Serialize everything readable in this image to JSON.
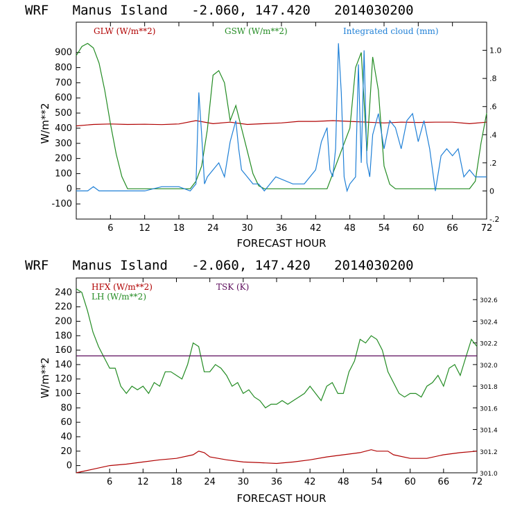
{
  "chart_data": [
    {
      "type": "line",
      "title": "WRF   Manus Island   -2.060, 147.420   2014030200",
      "xlabel": "FORECAST HOUR",
      "ylabel": "W/m**2",
      "xlim": [
        0,
        72
      ],
      "ylim": [
        -200,
        1100
      ],
      "x_ticks": [
        6,
        12,
        18,
        24,
        30,
        36,
        42,
        48,
        54,
        60,
        66,
        72
      ],
      "y_ticks": [
        -100,
        0,
        100,
        200,
        300,
        400,
        500,
        600,
        700,
        800,
        900
      ],
      "y2_range": [
        -0.2,
        1.2
      ],
      "y2_ticks": [
        "-.2",
        "0",
        ".2",
        ".4",
        ".6",
        ".8",
        "1.0"
      ],
      "y2_tick_values": [
        -0.2,
        0,
        0.2,
        0.4,
        0.6,
        0.8,
        1.0
      ],
      "legend": [
        "GLW (W/m**2)",
        "GSW (W/m**2)",
        "Integrated cloud (mm)"
      ],
      "series": [
        {
          "name": "GLW (W/m**2)",
          "color": "#b00000",
          "axis": "left",
          "x": [
            0,
            3,
            6,
            9,
            12,
            15,
            18,
            21,
            24,
            27,
            30,
            33,
            36,
            39,
            42,
            45,
            48,
            51,
            54,
            57,
            60,
            63,
            66,
            69,
            72
          ],
          "y": [
            415,
            425,
            428,
            425,
            426,
            424,
            428,
            450,
            430,
            440,
            425,
            430,
            435,
            445,
            445,
            450,
            445,
            440,
            435,
            440,
            438,
            440,
            440,
            430,
            440
          ]
        },
        {
          "name": "GSW (W/m**2)",
          "color": "#228b22",
          "axis": "left",
          "x": [
            0,
            1,
            2,
            3,
            4,
            5,
            6,
            7,
            8,
            9,
            10,
            20,
            21,
            22,
            23,
            24,
            25,
            26,
            27,
            28,
            29,
            30,
            31,
            32,
            33,
            34,
            35,
            44,
            45,
            46,
            47,
            48,
            49,
            50,
            51,
            52,
            53,
            54,
            55,
            56,
            69,
            70,
            71,
            72
          ],
          "y": [
            880,
            940,
            960,
            930,
            830,
            650,
            430,
            230,
            80,
            0,
            0,
            0,
            50,
            150,
            390,
            750,
            780,
            700,
            450,
            550,
            400,
            250,
            100,
            20,
            0,
            0,
            0,
            0,
            100,
            200,
            300,
            400,
            800,
            900,
            250,
            870,
            650,
            150,
            30,
            0,
            0,
            50,
            300,
            500
          ]
        },
        {
          "name": "Integrated cloud (mm)",
          "color": "#1e7fd6",
          "axis": "right",
          "x": [
            0,
            2,
            3,
            4,
            8,
            12,
            15,
            18,
            20,
            21,
            21.5,
            22,
            22.5,
            23,
            24,
            25,
            26,
            27,
            28,
            28.5,
            29,
            30,
            31,
            32,
            33,
            35,
            38,
            40,
            42,
            43,
            44,
            44.5,
            45,
            45.5,
            46,
            46.5,
            47,
            47.5,
            48,
            49,
            49.5,
            50,
            50.5,
            51,
            51.5,
            52,
            53,
            54,
            55,
            56,
            57,
            58,
            59,
            60,
            61,
            62,
            63,
            64,
            65,
            66,
            67,
            68,
            69,
            70,
            71,
            72
          ],
          "y": [
            0,
            0,
            0.03,
            0,
            0,
            0,
            0.03,
            0.03,
            0,
            0.05,
            0.7,
            0.4,
            0.05,
            0.1,
            0.15,
            0.2,
            0.1,
            0.35,
            0.5,
            0.3,
            0.15,
            0.1,
            0.05,
            0.05,
            0.0,
            0.1,
            0.05,
            0.05,
            0.15,
            0.35,
            0.45,
            0.15,
            0.1,
            0.3,
            1.05,
            0.7,
            0.1,
            0.0,
            0.05,
            0.1,
            0.9,
            0.2,
            1.0,
            0.2,
            0.1,
            0.4,
            0.55,
            0.3,
            0.5,
            0.45,
            0.3,
            0.5,
            0.55,
            0.35,
            0.5,
            0.3,
            0.0,
            0.25,
            0.3,
            0.25,
            0.3,
            0.1,
            0.15,
            0.1,
            0.1,
            0.1
          ]
        }
      ]
    },
    {
      "type": "line",
      "title": "WRF   Manus Island   -2.060, 147.420   2014030200",
      "xlabel": "FORECAST HOUR",
      "ylabel": "W/m**2",
      "xlim": [
        0,
        72
      ],
      "ylim": [
        -10,
        260
      ],
      "x_ticks": [
        6,
        12,
        18,
        24,
        30,
        36,
        42,
        48,
        54,
        60,
        66,
        72
      ],
      "y_ticks": [
        0,
        20,
        40,
        60,
        80,
        100,
        120,
        140,
        160,
        180,
        200,
        220,
        240
      ],
      "y2_range": [
        301.0,
        302.8
      ],
      "y2_ticks": [
        "301.0",
        "301.2",
        "301.4",
        "301.6",
        "301.8",
        "302.0",
        "302.2",
        "302.4",
        "302.6"
      ],
      "y2_tick_values": [
        301.0,
        301.2,
        301.4,
        301.6,
        301.8,
        302.0,
        302.2,
        302.4,
        302.6
      ],
      "legend": [
        "HFX (W/m**2)",
        "LH  (W/m**2)",
        "TSK (K)"
      ],
      "series": [
        {
          "name": "HFX (W/m**2)",
          "color": "#b00000",
          "axis": "left",
          "x": [
            0,
            3,
            6,
            9,
            12,
            15,
            18,
            21,
            22,
            23,
            24,
            27,
            30,
            33,
            36,
            39,
            42,
            45,
            48,
            51,
            53,
            54,
            56,
            57,
            60,
            63,
            66,
            69,
            72
          ],
          "y": [
            -10,
            -5,
            0,
            2,
            5,
            8,
            10,
            15,
            20,
            18,
            12,
            8,
            5,
            4,
            3,
            5,
            8,
            12,
            15,
            18,
            22,
            20,
            20,
            15,
            10,
            10,
            15,
            18,
            20
          ]
        },
        {
          "name": "LH  (W/m**2)",
          "color": "#228b22",
          "axis": "left",
          "x": [
            0,
            1,
            2,
            3,
            4,
            5,
            6,
            7,
            8,
            9,
            10,
            11,
            12,
            13,
            14,
            15,
            16,
            17,
            18,
            19,
            20,
            21,
            22,
            23,
            24,
            25,
            26,
            27,
            28,
            29,
            30,
            31,
            32,
            33,
            34,
            35,
            36,
            37,
            38,
            39,
            40,
            41,
            42,
            43,
            44,
            45,
            46,
            47,
            48,
            49,
            50,
            51,
            52,
            53,
            54,
            55,
            56,
            57,
            58,
            59,
            60,
            61,
            62,
            63,
            64,
            65,
            66,
            67,
            68,
            69,
            70,
            71,
            72
          ],
          "y": [
            245,
            240,
            215,
            185,
            165,
            150,
            135,
            135,
            110,
            100,
            110,
            105,
            110,
            100,
            115,
            110,
            130,
            130,
            125,
            120,
            140,
            170,
            165,
            130,
            130,
            140,
            135,
            125,
            110,
            115,
            100,
            105,
            95,
            90,
            80,
            85,
            85,
            90,
            85,
            90,
            95,
            100,
            110,
            100,
            90,
            110,
            115,
            100,
            100,
            130,
            145,
            175,
            170,
            180,
            175,
            160,
            130,
            115,
            100,
            95,
            100,
            100,
            95,
            110,
            115,
            125,
            110,
            135,
            140,
            125,
            150,
            175,
            165
          ]
        },
        {
          "name": "TSK (K)",
          "color": "#5a0a5a",
          "axis": "right",
          "x": [
            0,
            72
          ],
          "y": [
            302.08,
            302.08
          ]
        }
      ]
    }
  ]
}
